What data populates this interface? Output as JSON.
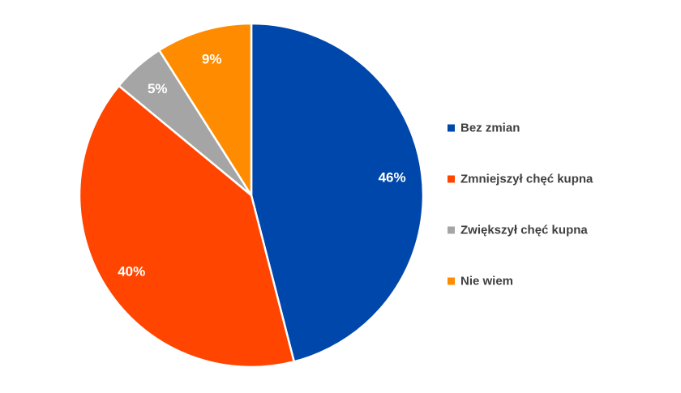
{
  "chart_data": {
    "type": "pie",
    "start_angle_deg": 0,
    "direction": "clockwise",
    "slices": [
      {
        "label": "Bez zmian",
        "value": 46,
        "display": "46%",
        "color": "#0047AB"
      },
      {
        "label": "Zmniejszył chęć kupna",
        "value": 40,
        "display": "40%",
        "color": "#FF4500"
      },
      {
        "label": "Zwiększył chęć kupna",
        "value": 5,
        "display": "5%",
        "color": "#A5A5A5"
      },
      {
        "label": "Nie wiem",
        "value": 9,
        "display": "9%",
        "color": "#FF8C00"
      }
    ],
    "legend_position": "right"
  }
}
